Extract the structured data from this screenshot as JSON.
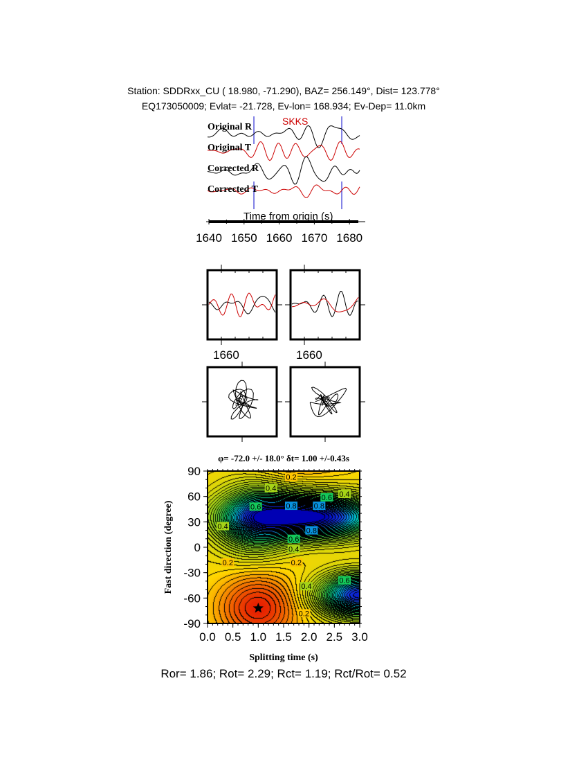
{
  "header": {
    "line1": "Station: SDDRxx_CU (  18.980,  -71.290), BAZ=  256.149°, Dist=  123.778°",
    "line2": "EQ173050009; Evlat= -21.728, Ev-lon= 168.934; Ev-Dep= 11.0km"
  },
  "colors": {
    "radial": "#000000",
    "transverse": "#cc0000",
    "window": "#0000cc",
    "phase": "#cc0000"
  },
  "chart_data": [
    {
      "type": "line",
      "phase_label": "SKKS",
      "trace_labels": [
        "Original R",
        "Original T",
        "Corrected R",
        "Corrected T"
      ],
      "xlabel": "Time from origin (s)",
      "xticks": [
        "1640",
        "1650",
        "1660",
        "1670",
        "1680"
      ],
      "xlim": [
        1640,
        1683
      ],
      "window": [
        1652.8,
        1677.8
      ]
    },
    {
      "type": "line",
      "panel": "waveform-overlay",
      "xtick_label": "1660",
      "panels": 2
    },
    {
      "type": "scatter",
      "panel": "particle-motion",
      "panels": 2
    },
    {
      "type": "heatmap",
      "title": "φ= -72.0 +/- 18.0° δt= 1.00 +/-0.43s",
      "xlabel": "Splitting time (s)",
      "ylabel": "Fast direction (degree)",
      "xlim": [
        0,
        3
      ],
      "ylim": [
        -90,
        90
      ],
      "xticks": [
        "0.0",
        "0.5",
        "1.0",
        "1.5",
        "2.0",
        "2.5",
        "3.0"
      ],
      "yticks": [
        "90",
        "60",
        "30",
        "0",
        "-30",
        "-60",
        "-90"
      ],
      "best_fit": {
        "dt": 1.0,
        "phi": -72.0
      },
      "contour_labels": [
        {
          "text": "0.2",
          "x": 1.65,
          "y": 83
        },
        {
          "text": "0.4",
          "x": 1.25,
          "y": 70
        },
        {
          "text": "0.6",
          "x": 0.95,
          "y": 48
        },
        {
          "text": "0.8",
          "x": 1.65,
          "y": 49
        },
        {
          "text": "0.8",
          "x": 2.2,
          "y": 49
        },
        {
          "text": "0.6",
          "x": 2.35,
          "y": 59
        },
        {
          "text": "0.4",
          "x": 2.7,
          "y": 63
        },
        {
          "text": "0.4",
          "x": 0.3,
          "y": 25
        },
        {
          "text": "0.8",
          "x": 2.05,
          "y": 20
        },
        {
          "text": "0.6",
          "x": 1.7,
          "y": 10
        },
        {
          "text": "0.4",
          "x": 1.7,
          "y": -2
        },
        {
          "text": "0.2",
          "x": 0.4,
          "y": -18
        },
        {
          "text": "0.2",
          "x": 1.75,
          "y": -18
        },
        {
          "text": "0.4",
          "x": 1.95,
          "y": -46
        },
        {
          "text": "0.6",
          "x": 2.7,
          "y": -39
        },
        {
          "text": "0.2",
          "x": 1.9,
          "y": -78
        }
      ]
    }
  ],
  "footer": "Ror= 1.86; Rot= 2.29; Rct= 1.19; Rct/Rot= 0.52"
}
